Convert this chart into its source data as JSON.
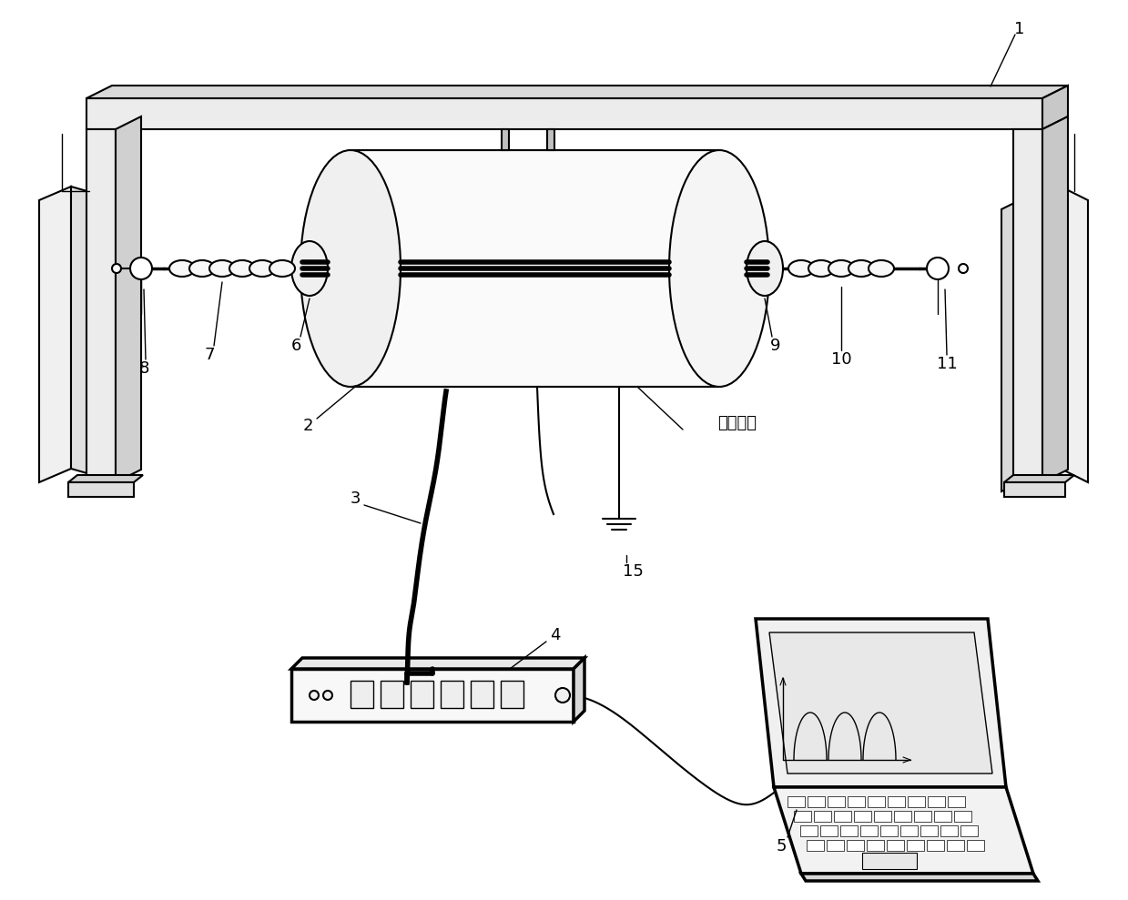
{
  "bg_color": "#ffffff",
  "line_color": "#000000",
  "label_1": "1",
  "label_2": "2",
  "label_3": "3",
  "label_4": "4",
  "label_5": "5",
  "label_6": "6",
  "label_7": "7",
  "label_8": "8",
  "label_9": "9",
  "label_10": "10",
  "label_11": "11",
  "label_15": "15",
  "chinese_text": "分裂导线",
  "figsize": [
    12.39,
    9.89
  ],
  "dpi": 100
}
